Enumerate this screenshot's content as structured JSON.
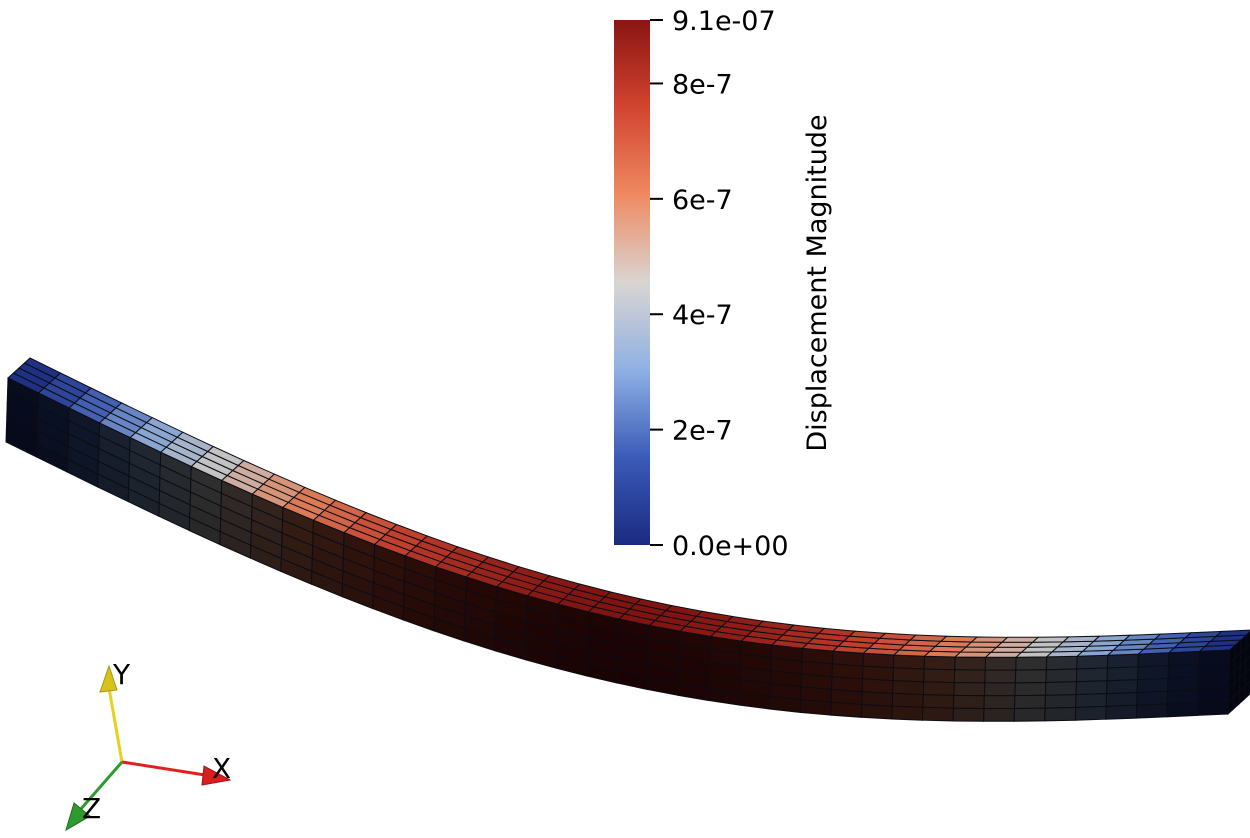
{
  "render_view": {
    "subject": "beam-mesh",
    "colormap": {
      "title": "Displacement Magnitude",
      "range": [
        0,
        9.1e-07
      ],
      "min_label": "0.0e+00",
      "max_label": "9.1e-07",
      "ticks": [
        {
          "value": 2e-07,
          "label": "2e-7"
        },
        {
          "value": 4e-07,
          "label": "4e-7"
        },
        {
          "value": 6e-07,
          "label": "6e-7"
        },
        {
          "value": 8e-07,
          "label": "8e-7"
        }
      ],
      "stops": [
        "#1a2a80",
        "#3b5bb8",
        "#8fb0e4",
        "#d9d5d2",
        "#ef8a62",
        "#d24430",
        "#8a1512"
      ]
    },
    "orientation_axes": {
      "x_label": "X",
      "y_label": "Y",
      "z_label": "Z",
      "x_color": "#e02020",
      "y_color": "#e6d21a",
      "z_color": "#2f9a2f"
    }
  }
}
